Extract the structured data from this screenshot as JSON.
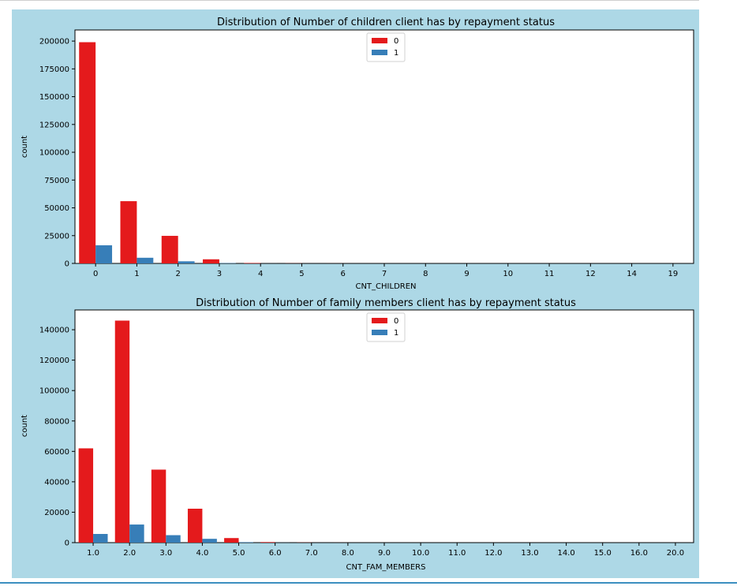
{
  "colors": {
    "series_0": "#e41a1c",
    "series_1": "#377eb8",
    "figure_bg": "#add8e6",
    "axes_bg": "#ffffff"
  },
  "chart_data": [
    {
      "type": "bar",
      "title": "Distribution of Number of children client has  by repayment status",
      "xlabel": "CNT_CHILDREN",
      "ylabel": "count",
      "categories": [
        "0",
        "1",
        "2",
        "3",
        "4",
        "5",
        "6",
        "7",
        "8",
        "9",
        "10",
        "11",
        "12",
        "14",
        "19"
      ],
      "ylim": [
        0,
        210000
      ],
      "yticks": [
        0,
        25000,
        50000,
        75000,
        100000,
        125000,
        150000,
        175000,
        200000
      ],
      "legend": "upper center",
      "series": [
        {
          "name": "0",
          "values": [
            199000,
            56000,
            24800,
            3700,
            400,
            80,
            20,
            7,
            2,
            2,
            2,
            1,
            2,
            3,
            2
          ]
        },
        {
          "name": "1",
          "values": [
            16300,
            5100,
            1900,
            290,
            30,
            7,
            0,
            0,
            0,
            2,
            0,
            0,
            0,
            0,
            0
          ]
        }
      ]
    },
    {
      "type": "bar",
      "title": "Distribution of Number of family members client has  by repayment status",
      "xlabel": "CNT_FAM_MEMBERS",
      "ylabel": "count",
      "categories": [
        "1.0",
        "2.0",
        "3.0",
        "4.0",
        "5.0",
        "6.0",
        "7.0",
        "8.0",
        "9.0",
        "10.0",
        "11.0",
        "12.0",
        "13.0",
        "14.0",
        "15.0",
        "16.0",
        "20.0"
      ],
      "ylim": [
        0,
        153000
      ],
      "yticks": [
        0,
        20000,
        40000,
        60000,
        80000,
        100000,
        120000,
        140000
      ],
      "legend": "upper center",
      "series": [
        {
          "name": "0",
          "values": [
            62000,
            146000,
            48000,
            22300,
            3000,
            370,
            75,
            18,
            5,
            2,
            1,
            1,
            1,
            1,
            1,
            1,
            2
          ]
        },
        {
          "name": "1",
          "values": [
            5700,
            11900,
            4900,
            2500,
            320,
            50,
            6,
            2,
            2,
            0,
            0,
            0,
            0,
            0,
            0,
            0,
            0
          ]
        }
      ]
    }
  ]
}
